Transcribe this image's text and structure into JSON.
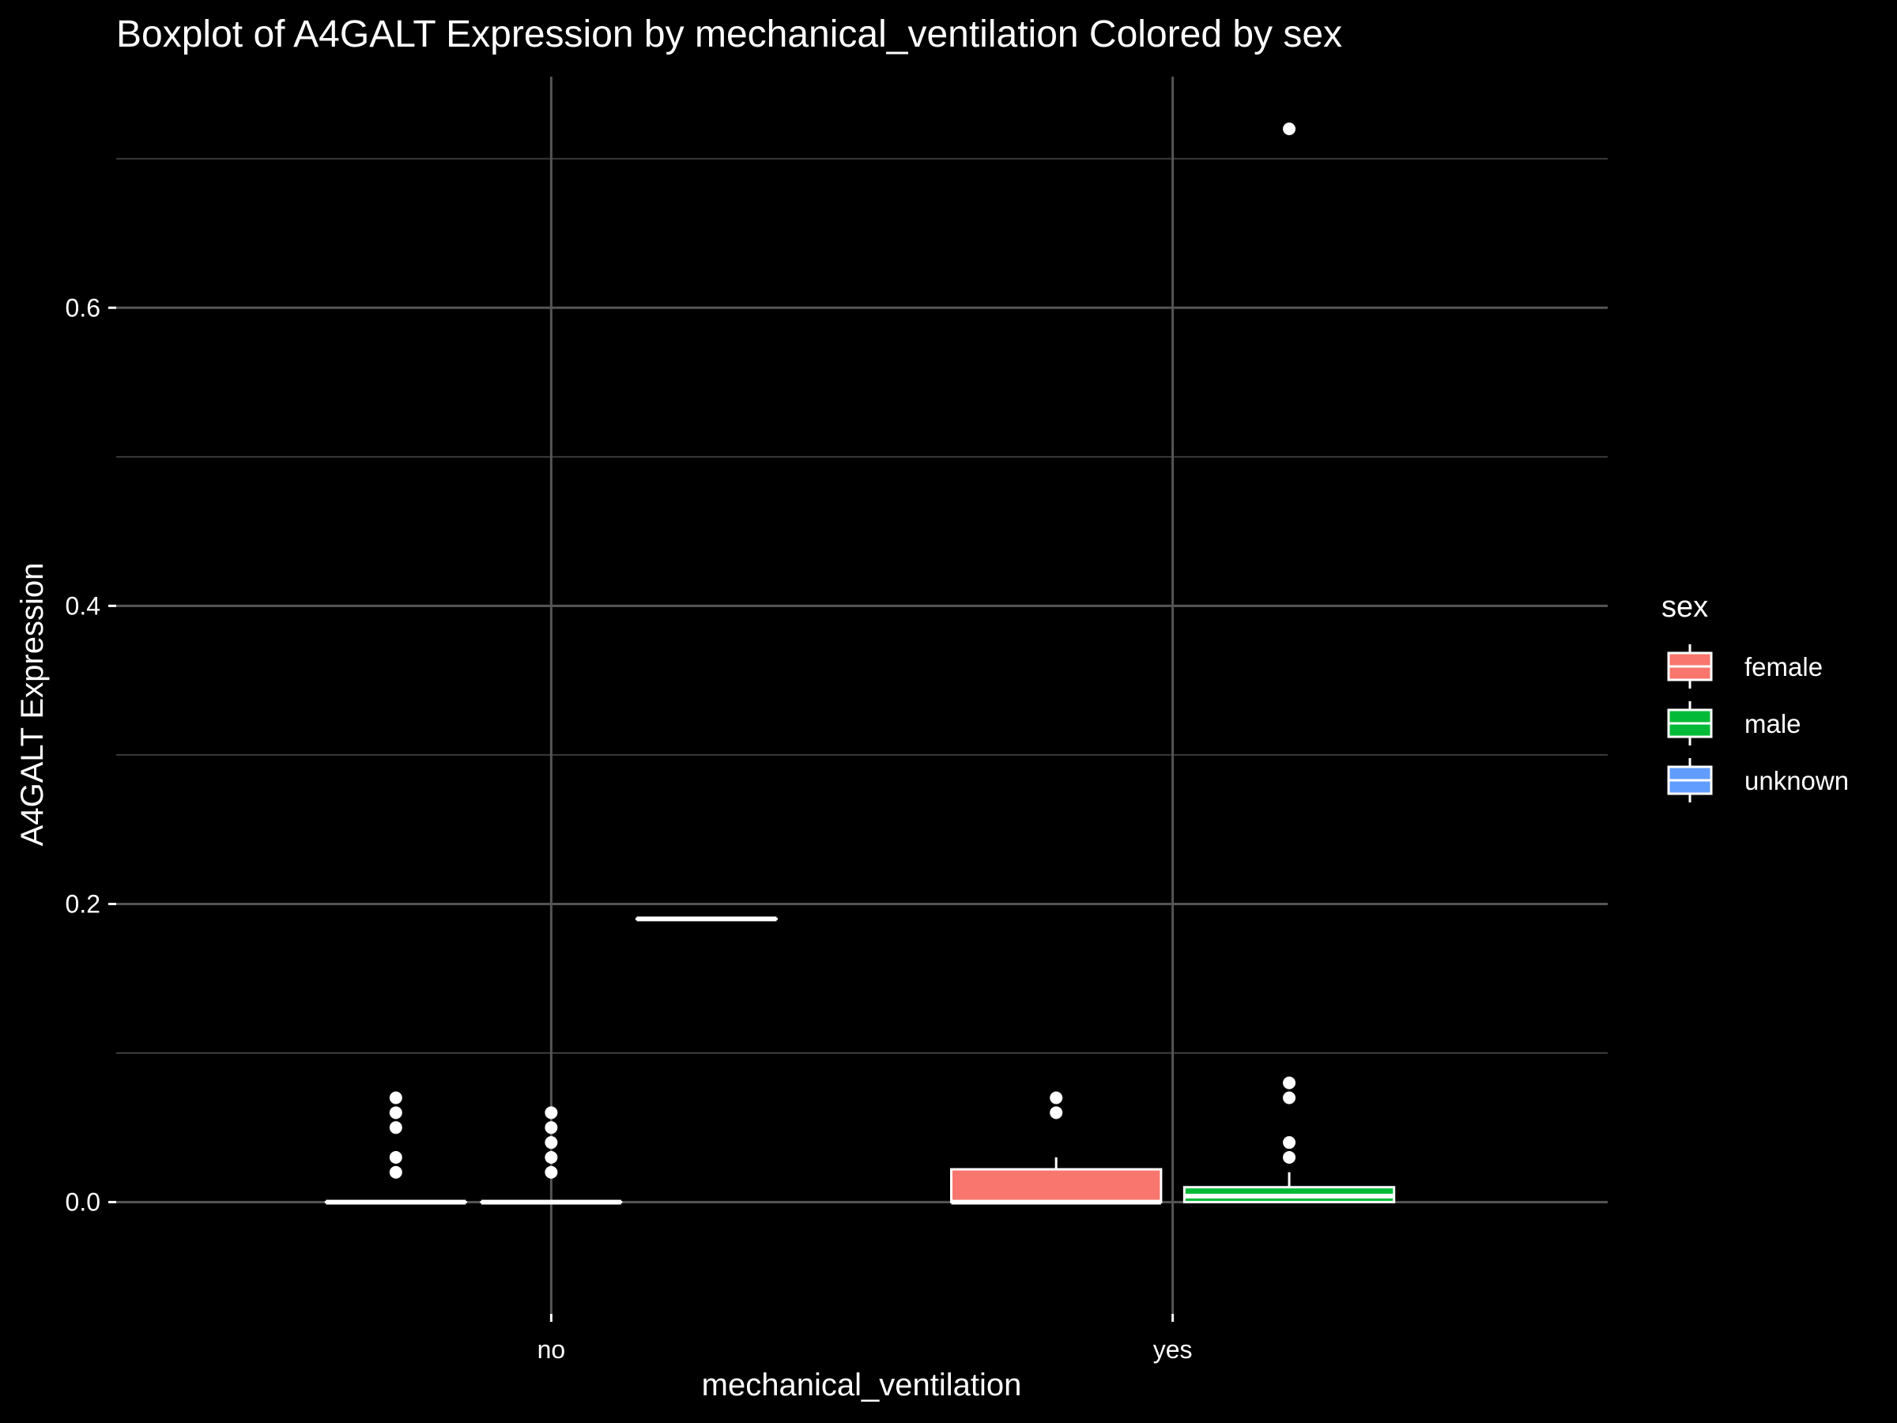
{
  "chart_data": {
    "type": "boxplot",
    "title": "Boxplot of A4GALT Expression by mechanical_ventilation Colored by sex",
    "xlabel": "mechanical_ventilation",
    "ylabel": "A4GALT Expression",
    "categories": [
      "no",
      "yes"
    ],
    "ylim": [
      -0.075,
      0.755
    ],
    "y_ticks": [
      0.0,
      0.2,
      0.4,
      0.6
    ],
    "y_tick_labels": [
      "0.0",
      "0.2",
      "0.4",
      "0.6"
    ],
    "grid": true,
    "legend": {
      "title": "sex",
      "position": "right",
      "entries": [
        {
          "label": "female",
          "color": "#F8766D"
        },
        {
          "label": "male",
          "color": "#00BA38"
        },
        {
          "label": "unknown",
          "color": "#619CFF"
        }
      ]
    },
    "boxes": [
      {
        "category": "no",
        "group": "female",
        "min": 0.0,
        "q1": 0.0,
        "median": 0.0,
        "q3": 0.0,
        "max": 0.0,
        "outliers": [
          0.02,
          0.03,
          0.05,
          0.06,
          0.07
        ]
      },
      {
        "category": "no",
        "group": "male",
        "min": 0.0,
        "q1": 0.0,
        "median": 0.0,
        "q3": 0.0,
        "max": 0.0,
        "outliers": [
          0.02,
          0.03,
          0.04,
          0.05,
          0.06
        ]
      },
      {
        "category": "no",
        "group": "unknown",
        "min": 0.19,
        "q1": 0.19,
        "median": 0.19,
        "q3": 0.19,
        "max": 0.19,
        "outliers": []
      },
      {
        "category": "yes",
        "group": "female",
        "min": 0.0,
        "q1": 0.0,
        "median": 0.0,
        "q3": 0.022,
        "max": 0.03,
        "outliers": [
          0.06,
          0.07
        ]
      },
      {
        "category": "yes",
        "group": "male",
        "min": 0.0,
        "q1": 0.0,
        "median": 0.004,
        "q3": 0.01,
        "max": 0.02,
        "outliers": [
          0.03,
          0.04,
          0.07,
          0.08,
          0.72
        ]
      }
    ]
  }
}
